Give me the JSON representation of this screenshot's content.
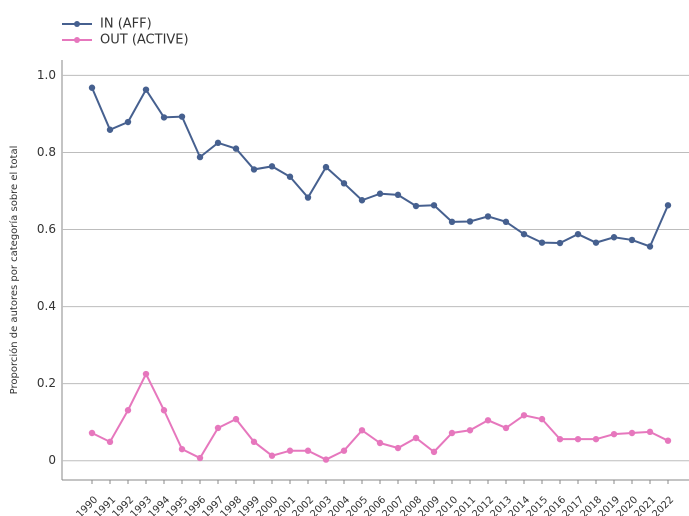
{
  "chart_data": {
    "type": "line",
    "y_label": "Proporción de autores por categoría sobre el total",
    "categories": [
      "1990",
      "1991",
      "1992",
      "1993",
      "1994",
      "1995",
      "1996",
      "1997",
      "1998",
      "1999",
      "2000",
      "2001",
      "2002",
      "2003",
      "2004",
      "2005",
      "2006",
      "2007",
      "2008",
      "2009",
      "2010",
      "2011",
      "2012",
      "2013",
      "2014",
      "2015",
      "2016",
      "2017",
      "2018",
      "2019",
      "2020",
      "2021",
      "2022"
    ],
    "series": [
      {
        "name": "IN (AFF)",
        "color": "#46608f",
        "values": [
          0.968,
          0.859,
          0.879,
          0.963,
          0.891,
          0.893,
          0.788,
          0.825,
          0.81,
          0.756,
          0.764,
          0.737,
          0.683,
          0.762,
          0.72,
          0.676,
          0.693,
          0.69,
          0.661,
          0.663,
          0.62,
          0.621,
          0.634,
          0.62,
          0.588,
          0.566,
          0.565,
          0.588,
          0.566,
          0.58,
          0.573,
          0.556,
          0.663
        ]
      },
      {
        "name": "OUT (ACTIVE)",
        "color": "#e677bd",
        "values": [
          0.072,
          0.049,
          0.131,
          0.225,
          0.131,
          0.03,
          0.007,
          0.085,
          0.108,
          0.049,
          0.013,
          0.026,
          0.026,
          0.003,
          0.026,
          0.079,
          0.046,
          0.033,
          0.059,
          0.023,
          0.072,
          0.079,
          0.105,
          0.085,
          0.118,
          0.108,
          0.056,
          0.056,
          0.056,
          0.069,
          0.072,
          0.075,
          0.052
        ]
      }
    ],
    "ylim": [
      -0.05,
      1.04
    ],
    "yticks": [
      0,
      0.2,
      0.4,
      0.6,
      0.8,
      {
        "value": 1,
        "label": "1.0"
      }
    ],
    "grid": true,
    "legend": "top-left"
  }
}
